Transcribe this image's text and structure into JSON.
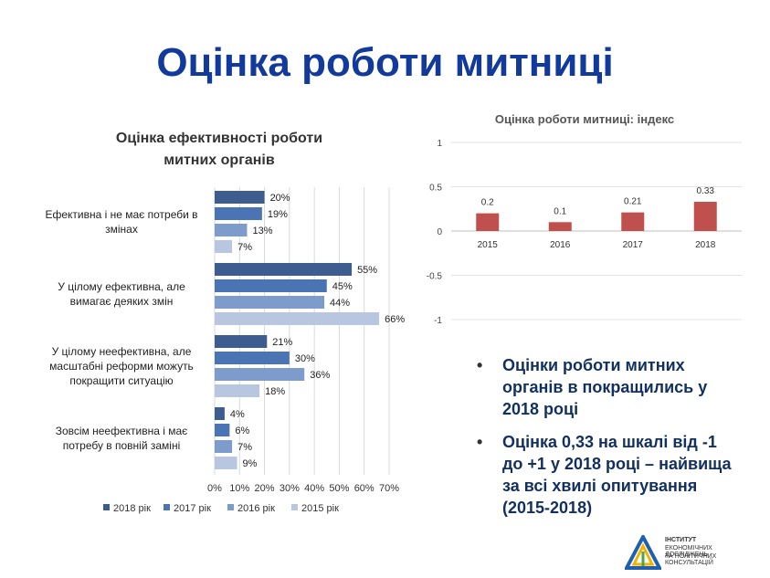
{
  "slide": {
    "title": "Оцінка роботи митниці",
    "bullets": [
      "Оцінки роботи митних органів в покращились у 2018 році",
      "Оцінка 0,33 на шкалі від -1 до +1 у 2018 році – найвища за всі хвилі опитування (2015-2018)"
    ],
    "logo": {
      "line1": "ІНСТИТУТ",
      "line2": "ЕКОНОМІЧНИХ ДОСЛІДЖЕНЬ",
      "line3": "ТА ПОЛІТИЧНИХ КОНСУЛЬТАЦІЙ"
    }
  },
  "colors": {
    "title": "#12399c",
    "bullet_text": "#12305e",
    "s2018": "#3d5d91",
    "s2017": "#4a74b3",
    "s2016": "#7d9bcb",
    "s2015": "#b8c6e0",
    "index_bar": "#c0504d"
  },
  "chart_data": [
    {
      "type": "bar",
      "orientation": "horizontal",
      "title_lines": [
        "Оцінка ефективності роботи",
        "митних органів"
      ],
      "categories": [
        [
          "Ефективна і не має потреби в",
          "змінах"
        ],
        [
          "У цілому ефективна, але",
          "вимагає деяких змін"
        ],
        [
          "У цілому неефективна, але",
          "масштабні реформи можуть",
          "покращити ситуацію"
        ],
        [
          "Зовсім неефективна і має",
          "потребу в повній заміні"
        ]
      ],
      "series": [
        {
          "name": "2018 рік",
          "values": [
            20,
            55,
            21,
            4
          ],
          "labels": [
            "20%",
            "55%",
            "21%",
            "4%"
          ]
        },
        {
          "name": "2017 рік",
          "values": [
            19,
            45,
            30,
            6
          ],
          "labels": [
            "19%",
            "45%",
            "30%",
            "6%"
          ]
        },
        {
          "name": "2016 рік",
          "values": [
            13,
            44,
            36,
            7
          ],
          "labels": [
            "13%",
            "44%",
            "36%",
            "7%"
          ]
        },
        {
          "name": "2015 рік",
          "values": [
            7,
            66,
            18,
            9
          ],
          "labels": [
            "7%",
            "66%",
            "18%",
            "9%"
          ]
        }
      ],
      "xlim": [
        0,
        70
      ],
      "xticks": [
        "0%",
        "10%",
        "20%",
        "30%",
        "40%",
        "50%",
        "60%",
        "70%"
      ],
      "grid": true,
      "legend": "bottom"
    },
    {
      "type": "bar",
      "title": "Оцінка роботи митниці: індекс",
      "categories": [
        "2015",
        "2016",
        "2017",
        "2018"
      ],
      "values": [
        0.2,
        0.1,
        0.21,
        0.33
      ],
      "labels": [
        "0.2",
        "0.1",
        "0.21",
        "0.33"
      ],
      "ylim": [
        -1,
        1
      ],
      "yticks": [
        "1",
        "0.5",
        "0",
        "-0.5",
        "-1"
      ],
      "grid": true
    }
  ]
}
